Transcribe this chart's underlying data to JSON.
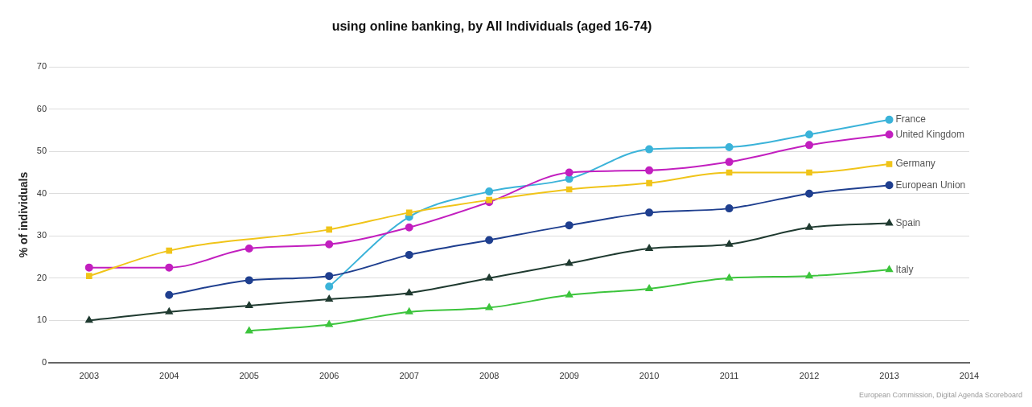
{
  "chart_data": {
    "type": "line",
    "title": "using online banking, by All Individuals (aged 16-74)",
    "ylabel": "% of individuals",
    "x": [
      2003,
      2004,
      2005,
      2006,
      2007,
      2008,
      2009,
      2010,
      2011,
      2012,
      2013
    ],
    "xlim": [
      2002.5,
      2014
    ],
    "xticks": [
      2003,
      2004,
      2005,
      2006,
      2007,
      2008,
      2009,
      2010,
      2011,
      2012,
      2013,
      2014
    ],
    "ylim": [
      0,
      70
    ],
    "yticks": [
      0,
      10,
      20,
      30,
      40,
      50,
      60,
      70
    ],
    "grid": "y",
    "legend": false,
    "annotations": [
      "European Commission, Digital Agenda Scoreboard"
    ],
    "series": [
      {
        "name": "France",
        "color": "#3bb3d9",
        "marker": "circle",
        "values": [
          null,
          null,
          null,
          18,
          34.5,
          40.5,
          43.5,
          50.5,
          51,
          54,
          57.5
        ]
      },
      {
        "name": "United Kingdom",
        "color": "#c21fbf",
        "marker": "circle",
        "values": [
          22.5,
          22.5,
          27,
          28,
          32,
          38,
          45,
          45.5,
          47.5,
          51.5,
          54
        ]
      },
      {
        "name": "Germany",
        "color": "#f0c419",
        "marker": "square",
        "values": [
          20.5,
          26.5,
          null,
          31.5,
          35.5,
          38.5,
          41,
          42.5,
          45,
          45,
          47
        ]
      },
      {
        "name": "European Union",
        "color": "#1f3f8f",
        "marker": "circle",
        "values": [
          null,
          16,
          19.5,
          20.5,
          25.5,
          29,
          32.5,
          35.5,
          36.5,
          40,
          42
        ]
      },
      {
        "name": "Spain",
        "color": "#1f3a30",
        "marker": "triangle",
        "values": [
          10,
          12,
          13.5,
          15,
          16.5,
          20,
          23.5,
          27,
          28,
          32,
          33
        ]
      },
      {
        "name": "Italy",
        "color": "#3cc43c",
        "marker": "triangle",
        "values": [
          null,
          null,
          7.5,
          9,
          12,
          13,
          16,
          17.5,
          20,
          20.5,
          22
        ]
      }
    ]
  }
}
